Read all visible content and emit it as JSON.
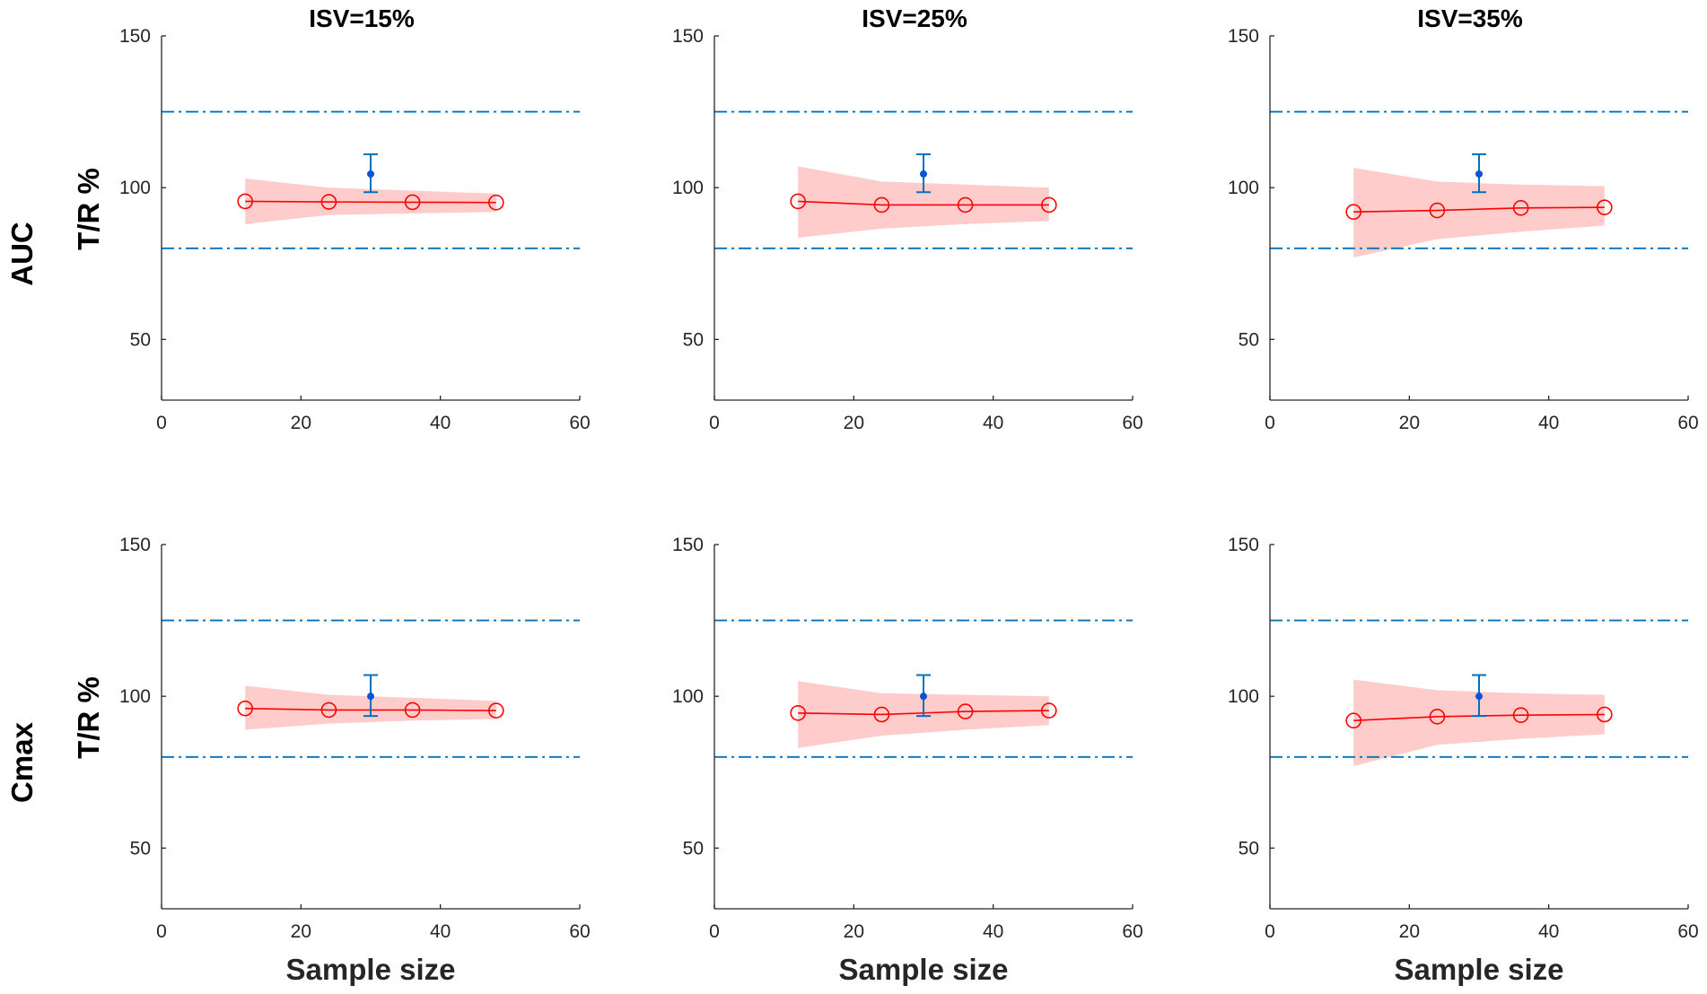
{
  "chart_data": {
    "type": "line",
    "layout": "2x3 grid",
    "columns": [
      "ISV=15%",
      "ISV=25%",
      "ISV=35%"
    ],
    "rows": [
      "AUC",
      "Cmax"
    ],
    "ylabel": "T/R %",
    "xlabel": "Sample size",
    "xlim": [
      0,
      60
    ],
    "ylim": [
      30,
      150
    ],
    "xticks": [
      "0",
      "20",
      "40",
      "60"
    ],
    "yticks": [
      "50",
      "100",
      "150"
    ],
    "reference_lines": [
      80,
      125
    ],
    "colors": {
      "line": "#ff0000",
      "band": "#ffcccc",
      "reference": "#0072bd",
      "observed": "#0a52d6"
    },
    "panels": [
      {
        "row": "AUC",
        "col": "ISV=15%",
        "x": [
          12,
          24,
          36,
          48
        ],
        "median": [
          95.5,
          95.3,
          95.2,
          95.1
        ],
        "lower": [
          88,
          91,
          91.5,
          92
        ],
        "upper": [
          103,
          100,
          99,
          98
        ],
        "observed": {
          "x": 30,
          "y": 104.5,
          "lower": 98.5,
          "upper": 111
        }
      },
      {
        "row": "AUC",
        "col": "ISV=25%",
        "x": [
          12,
          24,
          36,
          48
        ],
        "median": [
          95.5,
          94.3,
          94.3,
          94.3
        ],
        "lower": [
          83.5,
          86.5,
          88,
          89
        ],
        "upper": [
          107,
          102,
          101,
          100
        ],
        "observed": {
          "x": 30,
          "y": 104.5,
          "lower": 98.5,
          "upper": 111
        }
      },
      {
        "row": "AUC",
        "col": "ISV=35%",
        "x": [
          12,
          24,
          36,
          48
        ],
        "median": [
          92,
          92.5,
          93.3,
          93.5
        ],
        "lower": [
          77,
          83,
          85.5,
          87.5
        ],
        "upper": [
          106.5,
          102,
          101,
          100.5
        ],
        "observed": {
          "x": 30,
          "y": 104.5,
          "lower": 98.5,
          "upper": 111
        }
      },
      {
        "row": "Cmax",
        "col": "ISV=15%",
        "x": [
          12,
          24,
          36,
          48
        ],
        "median": [
          96,
          95.5,
          95.5,
          95.3
        ],
        "lower": [
          89,
          91,
          92,
          92.5
        ],
        "upper": [
          103.5,
          100.5,
          99.5,
          98.5
        ],
        "observed": {
          "x": 30,
          "y": 100,
          "lower": 93.5,
          "upper": 107
        }
      },
      {
        "row": "Cmax",
        "col": "ISV=25%",
        "x": [
          12,
          24,
          36,
          48
        ],
        "median": [
          94.5,
          94,
          95,
          95.3
        ],
        "lower": [
          83,
          87,
          89,
          90.5
        ],
        "upper": [
          105,
          101,
          100.5,
          100
        ],
        "observed": {
          "x": 30,
          "y": 100,
          "lower": 93.5,
          "upper": 107
        }
      },
      {
        "row": "Cmax",
        "col": "ISV=35%",
        "x": [
          12,
          24,
          36,
          48
        ],
        "median": [
          92,
          93.3,
          93.8,
          94
        ],
        "lower": [
          77,
          84,
          86,
          87.5
        ],
        "upper": [
          105.5,
          102,
          101,
          100.5
        ],
        "observed": {
          "x": 30,
          "y": 100,
          "lower": 93.5,
          "upper": 107
        }
      }
    ]
  }
}
